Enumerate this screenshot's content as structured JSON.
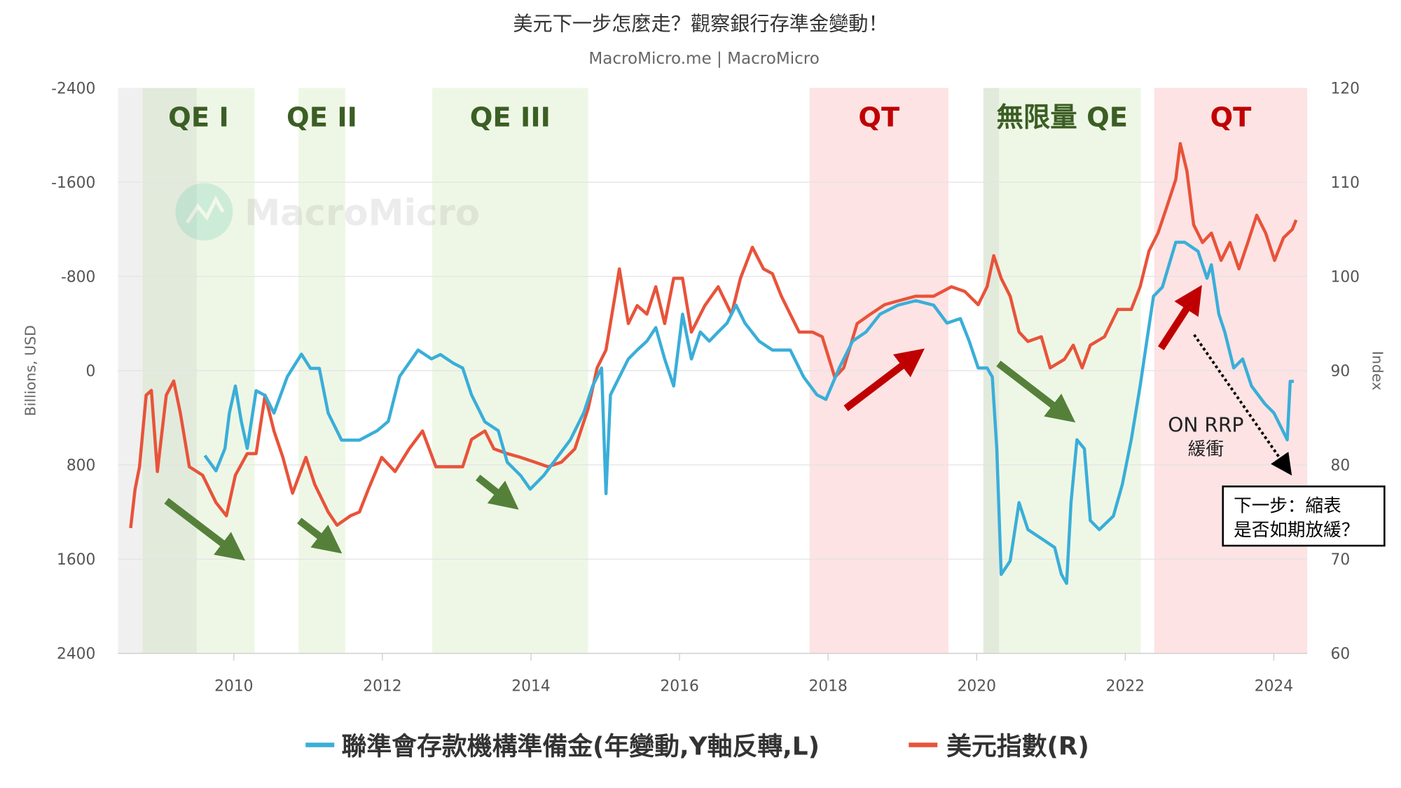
{
  "chart_data": {
    "type": "line",
    "title": "美元下一步怎麼走？觀察銀行存準金變動！",
    "subtitle": "MacroMicro.me | MacroMicro",
    "watermark": "MacroMicro",
    "x_ticks": [
      "2010",
      "2012",
      "2014",
      "2016",
      "2018",
      "2020",
      "2022",
      "2024"
    ],
    "xlim": [
      2008.44,
      2024.45
    ],
    "y_left": {
      "label": "Billions, USD",
      "range": [
        -2400,
        2400
      ],
      "inverted": true,
      "ticks": [
        "-2400",
        "-1600",
        "-800",
        "0",
        "800",
        "1600",
        "2400"
      ]
    },
    "y_right": {
      "label": "Index",
      "range": [
        60,
        120
      ],
      "ticks": [
        "120",
        "110",
        "100",
        "90",
        "80",
        "70",
        "60"
      ]
    },
    "grid": true,
    "legend_position": "bottom",
    "colors": {
      "reserves": "#3aaed8",
      "dxy": "#e8533a",
      "qe_band": "#eef7e6",
      "qe_dark": "#e2eadc",
      "qt_band": "#fde3e4",
      "gray_band": "#f0f0f0",
      "qe_text": "#3b5e23",
      "qt_text": "#c00000",
      "green_arrow": "#55803a",
      "red_arrow": "#c00000"
    },
    "bands": [
      {
        "label": "",
        "type": "gray",
        "from": 2008.44,
        "to": 2008.77
      },
      {
        "label": "QE I",
        "type": "qe",
        "from": 2008.77,
        "to": 2010.28,
        "dark_to": 2009.5
      },
      {
        "label": "QE II",
        "type": "qe",
        "from": 2010.87,
        "to": 2011.5
      },
      {
        "label": "QE III",
        "type": "qe",
        "from": 2012.67,
        "to": 2014.77
      },
      {
        "label": "QT",
        "type": "qt",
        "from": 2017.75,
        "to": 2019.62
      },
      {
        "label": "無限量 QE",
        "type": "qe",
        "from": 2020.09,
        "to": 2022.21,
        "dark_to": 2020.3
      },
      {
        "label": "QT",
        "type": "qt",
        "from": 2022.39,
        "to": 2024.45
      }
    ],
    "series": [
      {
        "name": "聯準會存款機構準備金(年變動,Y軸反轉,L)",
        "axis": "left",
        "x": [
          2009.61,
          2009.76,
          2009.88,
          2009.94,
          2010.02,
          2010.1,
          2010.18,
          2010.3,
          2010.42,
          2010.54,
          2010.72,
          2010.91,
          2011.03,
          2011.15,
          2011.27,
          2011.45,
          2011.69,
          2011.93,
          2012.08,
          2012.23,
          2012.48,
          2012.66,
          2012.78,
          2012.96,
          2013.08,
          2013.2,
          2013.38,
          2013.56,
          2013.68,
          2013.86,
          2013.99,
          2014.17,
          2014.35,
          2014.53,
          2014.71,
          2014.83,
          2014.95,
          2015.01,
          2015.07,
          2015.19,
          2015.31,
          2015.43,
          2015.56,
          2015.68,
          2015.8,
          2015.92,
          2016.04,
          2016.16,
          2016.28,
          2016.4,
          2016.52,
          2016.64,
          2016.76,
          2016.88,
          2017.07,
          2017.25,
          2017.49,
          2017.67,
          2017.85,
          2017.97,
          2018.15,
          2018.33,
          2018.51,
          2018.7,
          2018.94,
          2019.18,
          2019.42,
          2019.6,
          2019.78,
          2019.9,
          2020.02,
          2020.14,
          2020.21,
          2020.27,
          2020.33,
          2020.45,
          2020.57,
          2020.69,
          2020.87,
          2021.05,
          2021.14,
          2021.21,
          2021.27,
          2021.35,
          2021.45,
          2021.53,
          2021.65,
          2021.84,
          2021.96,
          2022.08,
          2022.2,
          2022.29,
          2022.38,
          2022.5,
          2022.68,
          2022.8,
          2022.98,
          2023.1,
          2023.16,
          2023.26,
          2023.34,
          2023.46,
          2023.58,
          2023.7,
          2023.88,
          2024.0,
          2024.12,
          2024.18,
          2024.22,
          2024.27
        ],
        "values": [
          720,
          850,
          660,
          360,
          130,
          430,
          660,
          170,
          210,
          360,
          50,
          -140,
          -20,
          -20,
          360,
          590,
          590,
          510,
          430,
          50,
          -175,
          -100,
          -137,
          -61,
          -23,
          206,
          434,
          510,
          777,
          891,
          1006,
          891,
          739,
          587,
          358,
          130,
          -23,
          1044,
          206,
          53,
          -99,
          -175,
          -251,
          -366,
          -99,
          130,
          -480,
          -99,
          -328,
          -251,
          -328,
          -404,
          -556,
          -404,
          -251,
          -175,
          -175,
          53,
          206,
          244,
          -23,
          -251,
          -328,
          -480,
          -556,
          -594,
          -556,
          -404,
          -442,
          -251,
          -23,
          -23,
          53,
          663,
          1730,
          1615,
          1120,
          1349,
          1425,
          1501,
          1730,
          1806,
          1120,
          587,
          663,
          1272,
          1349,
          1234,
          968,
          587,
          130,
          -251,
          -632,
          -709,
          -1090,
          -1090,
          -1013,
          -785,
          -899,
          -480,
          -328,
          -23,
          -99,
          130,
          282,
          358,
          510,
          587,
          91,
          91
        ]
      },
      {
        "name": "美元指數(R)",
        "axis": "right",
        "x": [
          2008.61,
          2008.67,
          2008.73,
          2008.82,
          2008.89,
          2008.97,
          2009.09,
          2009.19,
          2009.28,
          2009.4,
          2009.58,
          2009.76,
          2009.9,
          2010.02,
          2010.18,
          2010.3,
          2010.42,
          2010.54,
          2010.66,
          2010.79,
          2010.97,
          2011.09,
          2011.27,
          2011.39,
          2011.57,
          2011.69,
          2011.81,
          2011.99,
          2012.17,
          2012.36,
          2012.54,
          2012.72,
          2012.9,
          2013.08,
          2013.2,
          2013.38,
          2013.5,
          2013.68,
          2013.86,
          2014.05,
          2014.23,
          2014.41,
          2014.59,
          2014.77,
          2014.89,
          2015.01,
          2015.13,
          2015.19,
          2015.31,
          2015.43,
          2015.56,
          2015.68,
          2015.8,
          2015.92,
          2016.04,
          2016.16,
          2016.34,
          2016.52,
          2016.7,
          2016.82,
          2016.98,
          2017.13,
          2017.25,
          2017.37,
          2017.49,
          2017.61,
          2017.79,
          2017.92,
          2018.09,
          2018.21,
          2018.39,
          2018.57,
          2018.76,
          2018.94,
          2019.18,
          2019.42,
          2019.66,
          2019.84,
          2020.02,
          2020.14,
          2020.23,
          2020.33,
          2020.45,
          2020.57,
          2020.69,
          2020.87,
          2020.99,
          2021.18,
          2021.3,
          2021.42,
          2021.53,
          2021.72,
          2021.9,
          2022.08,
          2022.2,
          2022.32,
          2022.44,
          2022.56,
          2022.68,
          2022.74,
          2022.83,
          2022.92,
          2023.04,
          2023.16,
          2023.29,
          2023.41,
          2023.53,
          2023.65,
          2023.77,
          2023.89,
          2024.01,
          2024.13,
          2024.25,
          2024.3
        ],
        "values": [
          73.3,
          77.4,
          79.8,
          87.4,
          87.9,
          79.3,
          87.4,
          88.9,
          85.5,
          79.8,
          78.9,
          76.0,
          74.6,
          78.9,
          81.2,
          81.2,
          87.4,
          83.6,
          80.8,
          77.0,
          80.8,
          77.9,
          75.0,
          73.6,
          74.6,
          75.0,
          77.4,
          80.8,
          79.3,
          81.7,
          83.6,
          79.8,
          79.8,
          79.8,
          82.7,
          83.6,
          81.7,
          81.2,
          80.8,
          80.3,
          79.8,
          80.3,
          81.7,
          86.0,
          90.3,
          92.2,
          97.9,
          100.8,
          95.0,
          96.9,
          96.0,
          98.9,
          95.0,
          99.8,
          99.8,
          94.1,
          96.9,
          98.9,
          96.0,
          99.8,
          103.1,
          100.8,
          100.3,
          97.9,
          96.0,
          94.1,
          94.1,
          93.6,
          89.3,
          90.3,
          95.0,
          96.0,
          97.0,
          97.4,
          97.9,
          97.9,
          98.9,
          98.4,
          97.0,
          98.9,
          102.2,
          99.8,
          97.9,
          94.1,
          93.1,
          93.6,
          90.3,
          91.2,
          92.7,
          90.3,
          92.7,
          93.6,
          96.5,
          96.5,
          98.9,
          102.7,
          104.6,
          107.4,
          110.3,
          114.1,
          111.2,
          105.5,
          103.6,
          104.6,
          101.7,
          103.6,
          100.8,
          103.6,
          106.5,
          104.6,
          101.7,
          104.1,
          105.0,
          106.0
        ]
      }
    ],
    "annotations": {
      "on_rrp_line1": "ON RRP",
      "on_rrp_line2": "緩衝",
      "box_line1": "下一步：縮表",
      "box_line2": "是否如期放緩？"
    }
  }
}
